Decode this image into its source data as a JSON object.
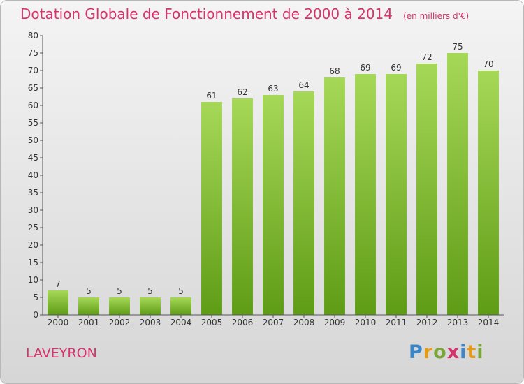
{
  "header": {
    "title": "Dotation Globale de Fonctionnement de 2000 à 2014",
    "unit": "(en milliers d'€)"
  },
  "footer": {
    "place": "LAVEYRON",
    "logo": "Proxiti"
  },
  "chart_data": {
    "type": "bar",
    "title": "Dotation Globale de Fonctionnement de 2000 à 2014",
    "subtitle": "(en milliers d'€)",
    "xlabel": "",
    "ylabel": "",
    "categories": [
      "2000",
      "2001",
      "2002",
      "2003",
      "2004",
      "2005",
      "2006",
      "2007",
      "2008",
      "2009",
      "2010",
      "2011",
      "2012",
      "2013",
      "2014"
    ],
    "values": [
      7,
      5,
      5,
      5,
      5,
      61,
      62,
      63,
      64,
      68,
      69,
      69,
      72,
      75,
      70
    ],
    "ylim": [
      0,
      80
    ],
    "ytick_step": 5,
    "grid": false,
    "legend": "none",
    "bar_color_light": "#a6d857",
    "bar_color_dark": "#5f9c16"
  }
}
